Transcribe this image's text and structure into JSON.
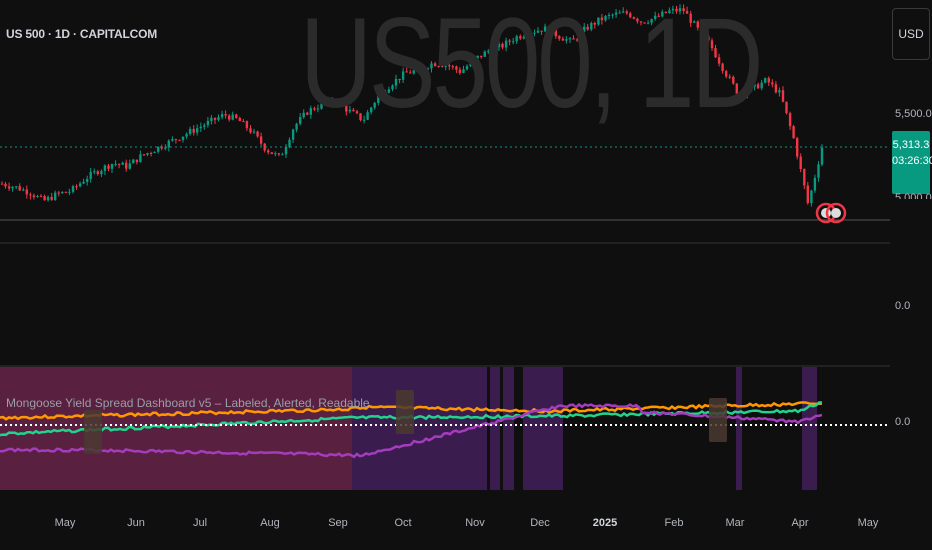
{
  "header": {
    "symbol_title": "US 500 · 1D · CAPITALCOM",
    "watermark": "US500, 1D",
    "currency_button": "USD"
  },
  "price_scale": {
    "level_5500": "5,500.0",
    "current_price": "5,313.3",
    "countdown": "03:26:30",
    "partial_label": "5,000.0",
    "zero_label": "0.0"
  },
  "indicator": {
    "title": "Mongoose Yield Spread Dashboard v5 – Labeled, Alerted, Readable",
    "zero_label": "0.0"
  },
  "time_axis": {
    "months": [
      {
        "label": "May",
        "year": false
      },
      {
        "label": "Jun",
        "year": false
      },
      {
        "label": "Jul",
        "year": false
      },
      {
        "label": "Aug",
        "year": false
      },
      {
        "label": "Sep",
        "year": false
      },
      {
        "label": "Oct",
        "year": false
      },
      {
        "label": "Nov",
        "year": false
      },
      {
        "label": "Dec",
        "year": false
      },
      {
        "label": "2025",
        "year": true
      },
      {
        "label": "Feb",
        "year": false
      },
      {
        "label": "Mar",
        "year": false
      },
      {
        "label": "Apr",
        "year": false
      },
      {
        "label": "May",
        "year": false
      }
    ]
  },
  "colors": {
    "up_candle": "#089981",
    "down_candle": "#f23645",
    "orange_line": "#ff9800",
    "green_line": "#22d38c",
    "purple_line": "#a53bbd",
    "white_zero": "#ffffff",
    "bg_red_band": "#5a2040",
    "bg_purple_band": "#3a1d4e"
  },
  "chart_data": {
    "type": "candlestick",
    "price_path_y_approx": [
      5100,
      5080,
      5050,
      5000,
      5040,
      5060,
      5130,
      5180,
      5220,
      5200,
      5260,
      5300,
      5340,
      5380,
      5420,
      5460,
      5500,
      5470,
      5400,
      5300,
      5250,
      5430,
      5520,
      5560,
      5580,
      5520,
      5470,
      5600,
      5680,
      5740,
      5760,
      5800,
      5790,
      5750,
      5820,
      5870,
      5900,
      5950,
      5980,
      6000,
      5960,
      5920,
      6000,
      6050,
      6080,
      6090,
      6040,
      6060,
      6100,
      6110,
      6000,
      5900,
      5750,
      5620,
      5650,
      5700,
      5620,
      5350,
      4980,
      5313
    ],
    "indicator_lines": [
      "orange",
      "green",
      "purple"
    ]
  }
}
